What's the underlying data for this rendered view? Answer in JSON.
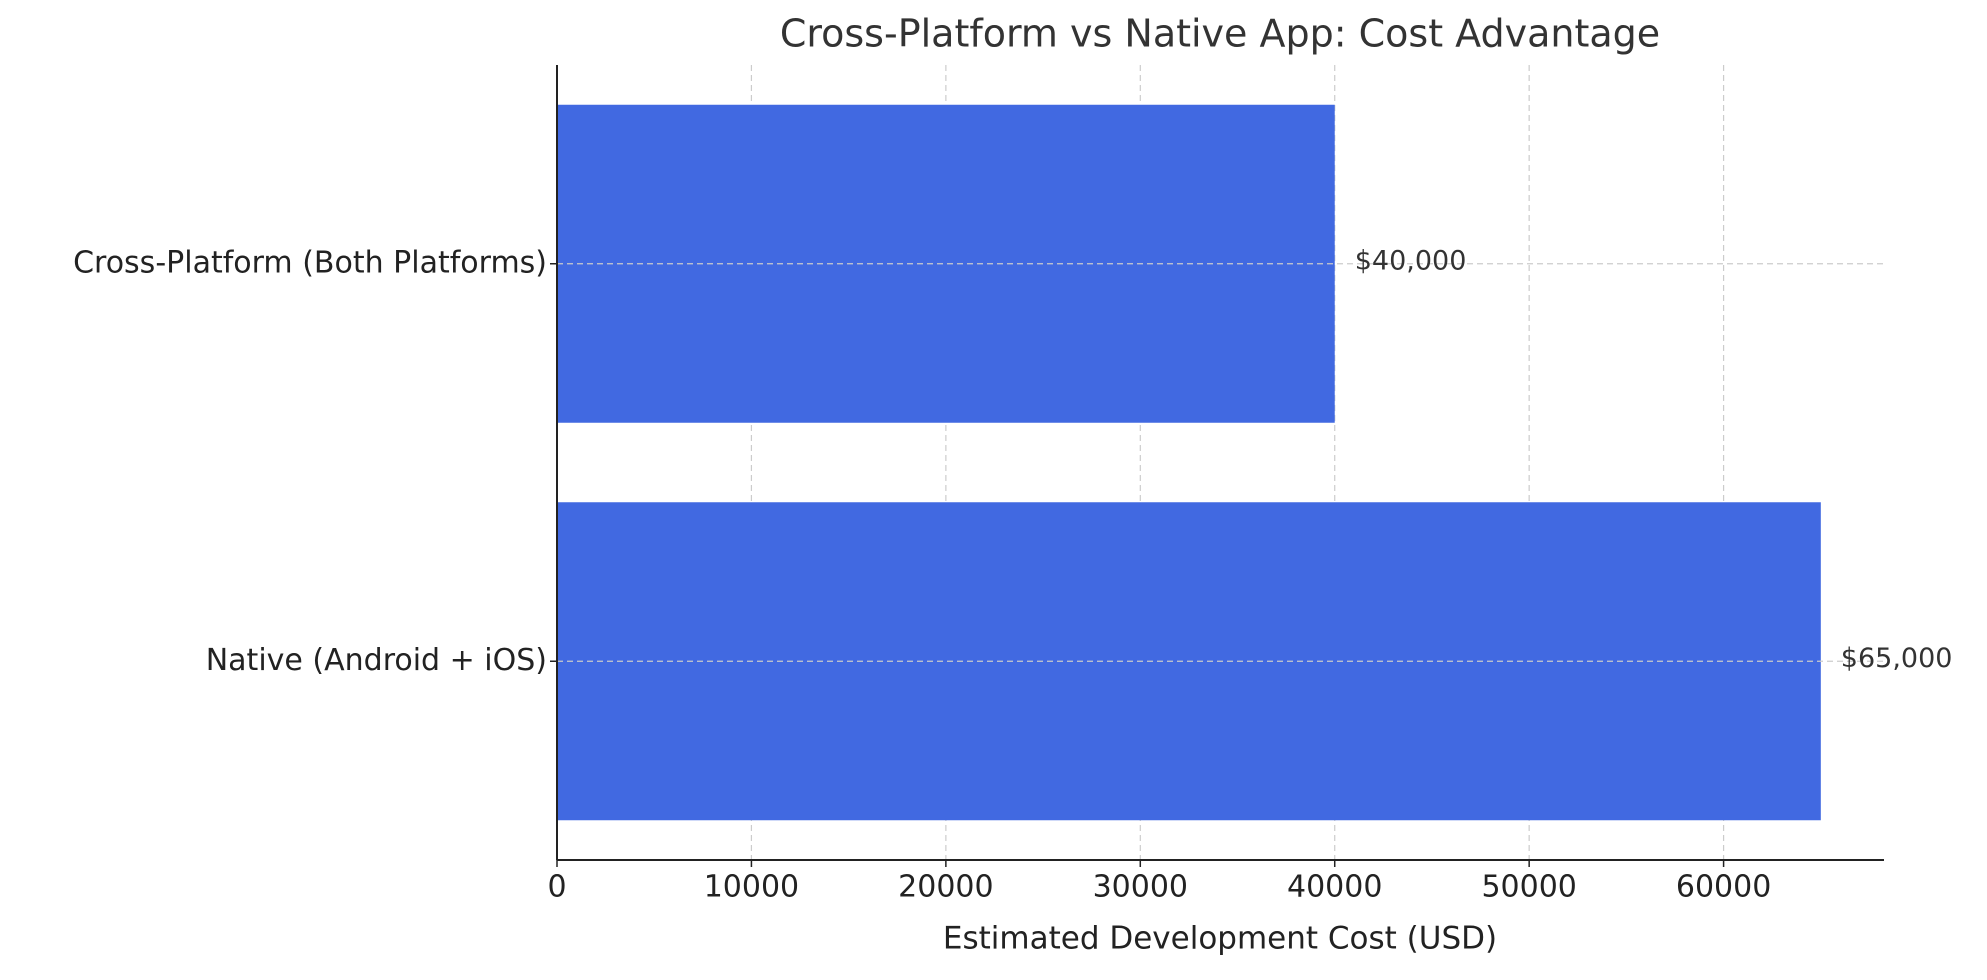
{
  "chart_data": {
    "type": "barh",
    "title": "Cross-Platform vs Native App: Cost Advantage",
    "x_label": "Estimated Development Cost (USD)",
    "categories": [
      "Cross-Platform (Both Platforms)",
      "Native (Android + iOS)"
    ],
    "values": [
      40000,
      65000
    ],
    "value_labels": [
      "$40,000",
      "$65,000"
    ],
    "color": "#4169e1",
    "xlim": [
      0,
      68250
    ],
    "xticks": [
      0,
      10000,
      20000,
      30000,
      40000,
      50000,
      60000
    ],
    "grid": true
  }
}
